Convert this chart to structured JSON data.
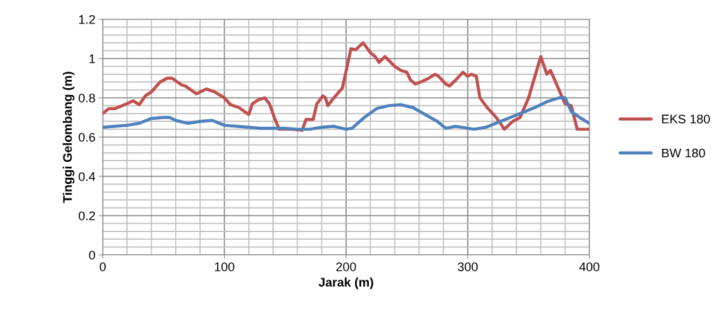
{
  "chart_data": {
    "type": "line",
    "xlabel": "Jarak (m)",
    "ylabel": "Tinggi Gelombang (m)",
    "xlim": [
      0,
      400
    ],
    "xticks": [
      0,
      100,
      200,
      300,
      400
    ],
    "ylim": [
      0,
      1.2
    ],
    "yticks": [
      0,
      0.2,
      0.4,
      0.6,
      0.8,
      1,
      1.2
    ],
    "grid": true,
    "legend": "right",
    "line_style": "solid",
    "marker": "none",
    "series": [
      {
        "name": "EKS 180",
        "color": "#c0504d",
        "x": [
          0,
          5,
          10,
          20,
          25,
          30,
          35,
          40,
          47,
          53,
          57,
          65,
          68,
          77,
          85,
          92,
          100,
          105,
          112,
          120,
          123,
          128,
          133,
          137,
          141,
          145,
          155,
          164,
          167,
          173,
          176,
          181,
          183,
          185,
          190,
          197,
          204,
          208,
          214,
          220,
          224,
          227,
          232,
          240,
          245,
          250,
          253,
          257,
          263,
          268,
          273,
          276,
          282,
          285,
          290,
          296,
          300,
          303,
          307,
          310,
          316,
          322,
          327,
          330,
          337,
          343,
          350,
          360,
          365,
          368,
          375,
          380,
          385,
          390,
          400
        ],
        "values": [
          0.72,
          0.745,
          0.745,
          0.77,
          0.785,
          0.765,
          0.81,
          0.83,
          0.88,
          0.9,
          0.9,
          0.865,
          0.86,
          0.82,
          0.845,
          0.83,
          0.8,
          0.765,
          0.75,
          0.715,
          0.77,
          0.79,
          0.8,
          0.77,
          0.7,
          0.64,
          0.64,
          0.635,
          0.69,
          0.69,
          0.77,
          0.81,
          0.8,
          0.76,
          0.8,
          0.85,
          1.05,
          1.045,
          1.08,
          1.03,
          1.01,
          0.98,
          1.01,
          0.96,
          0.94,
          0.93,
          0.89,
          0.87,
          0.885,
          0.9,
          0.92,
          0.91,
          0.87,
          0.86,
          0.89,
          0.93,
          0.91,
          0.92,
          0.91,
          0.8,
          0.75,
          0.71,
          0.67,
          0.64,
          0.68,
          0.7,
          0.8,
          1.01,
          0.92,
          0.94,
          0.84,
          0.77,
          0.76,
          0.64,
          0.64
        ]
      },
      {
        "name": "BW 180",
        "color": "#4f81bd",
        "x": [
          0,
          10,
          20,
          30,
          40,
          50,
          55,
          60,
          70,
          80,
          90,
          100,
          110,
          120,
          130,
          140,
          150,
          160,
          170,
          180,
          190,
          200,
          205,
          215,
          225,
          235,
          245,
          255,
          265,
          275,
          282,
          290,
          300,
          305,
          315,
          325,
          335,
          345,
          355,
          365,
          375,
          380,
          385,
          392,
          400
        ],
        "values": [
          0.65,
          0.655,
          0.66,
          0.67,
          0.695,
          0.7,
          0.7,
          0.685,
          0.67,
          0.68,
          0.685,
          0.66,
          0.655,
          0.65,
          0.645,
          0.645,
          0.645,
          0.64,
          0.64,
          0.65,
          0.655,
          0.64,
          0.645,
          0.7,
          0.745,
          0.76,
          0.765,
          0.75,
          0.715,
          0.68,
          0.645,
          0.655,
          0.645,
          0.64,
          0.65,
          0.675,
          0.7,
          0.725,
          0.75,
          0.78,
          0.8,
          0.8,
          0.73,
          0.7,
          0.67
        ]
      }
    ]
  }
}
